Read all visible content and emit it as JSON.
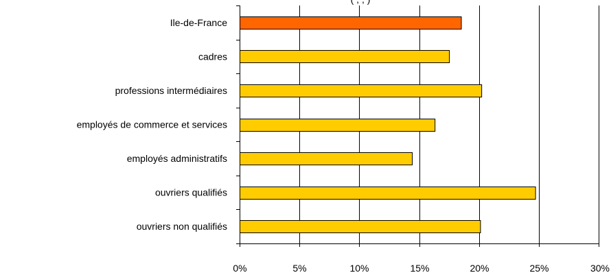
{
  "chart_data": {
    "type": "bar",
    "orientation": "horizontal",
    "title": "",
    "subtitle_partial": "(             ,             ,                   )",
    "xlabel": "",
    "ylabel": "",
    "categories": [
      "Ile-de-France",
      "cadres",
      "professions intermédiaires",
      "employés de commerce et services",
      "employés administratifs",
      "ouvriers qualifiés",
      "ouvriers non qualifiés"
    ],
    "values": [
      18.5,
      17.5,
      20.2,
      16.3,
      14.4,
      24.7,
      20.1
    ],
    "xlim": [
      0,
      30
    ],
    "x_ticks": [
      0,
      5,
      10,
      15,
      20,
      25,
      30
    ],
    "x_tick_labels": [
      "0%",
      "5%",
      "10%",
      "15%",
      "20%",
      "25%",
      "30%"
    ],
    "grid": "vertical",
    "legend": "none",
    "colors": {
      "highlight": "#FF6600",
      "bar": "#FFCC00",
      "bar_border": "#000000",
      "grid": "#000000"
    },
    "highlight_index": 0
  }
}
